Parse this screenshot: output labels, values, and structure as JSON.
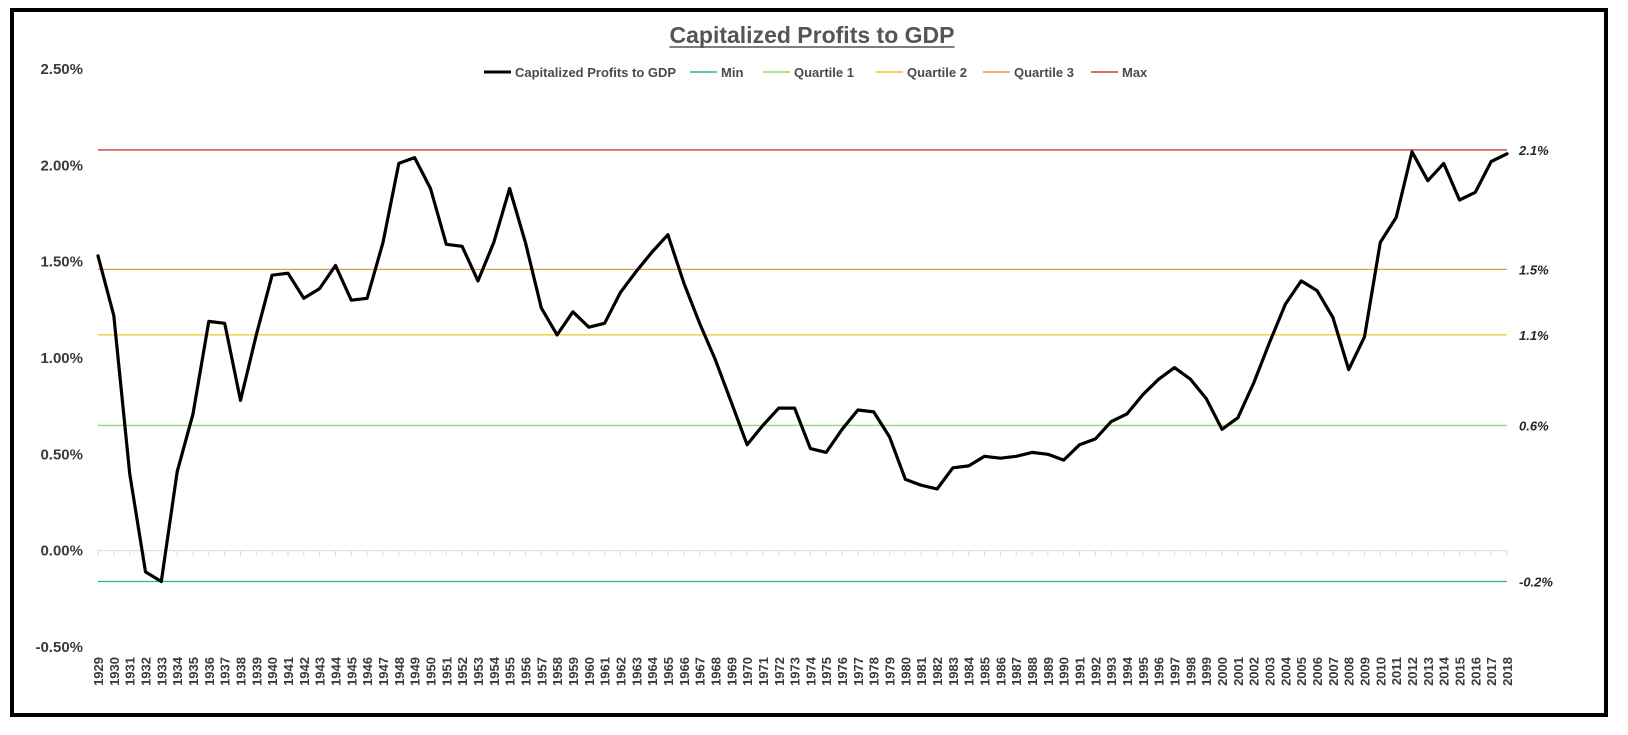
{
  "chart_data": {
    "type": "line",
    "title": "Capitalized Profits to GDP",
    "xlabel": "",
    "ylabel": "",
    "ylim": [
      -0.005,
      0.025
    ],
    "y_ticks": [
      "2.50%",
      "2.00%",
      "1.50%",
      "1.00%",
      "0.50%",
      "0.00%",
      "-0.50%"
    ],
    "y_tick_values": [
      0.025,
      0.02,
      0.015,
      0.01,
      0.005,
      0.0,
      -0.005
    ],
    "x": [
      1929,
      1930,
      1931,
      1932,
      1933,
      1934,
      1935,
      1936,
      1937,
      1938,
      1939,
      1940,
      1941,
      1942,
      1943,
      1944,
      1945,
      1946,
      1947,
      1948,
      1949,
      1950,
      1951,
      1952,
      1953,
      1954,
      1955,
      1956,
      1957,
      1958,
      1959,
      1960,
      1961,
      1962,
      1963,
      1964,
      1965,
      1966,
      1967,
      1968,
      1969,
      1970,
      1971,
      1972,
      1973,
      1974,
      1975,
      1976,
      1977,
      1978,
      1979,
      1980,
      1981,
      1982,
      1983,
      1984,
      1985,
      1986,
      1987,
      1988,
      1989,
      1990,
      1991,
      1992,
      1993,
      1994,
      1995,
      1996,
      1997,
      1998,
      1999,
      2000,
      2001,
      2002,
      2003,
      2004,
      2005,
      2006,
      2007,
      2008,
      2009,
      2010,
      2011,
      2012,
      2013,
      2014,
      2015,
      2016,
      2017,
      2018
    ],
    "x_labels": [
      "1929",
      "1930",
      "1931",
      "1932",
      "1933",
      "1934",
      "1935",
      "1936",
      "1937",
      "1938",
      "1939",
      "1940",
      "1941",
      "1942",
      "1943",
      "1944",
      "1945",
      "1946",
      "1947",
      "1948",
      "1949",
      "1950",
      "1951",
      "1952",
      "1953",
      "1954",
      "1955",
      "1956",
      "1957",
      "1958",
      "1959",
      "1960",
      "1961",
      "1962",
      "1963",
      "1964",
      "1965",
      "1966",
      "1967",
      "1968",
      "1969",
      "1970",
      "1971",
      "1972",
      "1973",
      "1974",
      "1975",
      "1976",
      "1977",
      "1978",
      "1979",
      "1980",
      "1981",
      "1982",
      "1983",
      "1984",
      "1985",
      "1986",
      "1987",
      "1988",
      "1989",
      "1990",
      "1991",
      "1992",
      "1993",
      "1994",
      "1995",
      "1996",
      "1997",
      "1998",
      "1999",
      "2000",
      "2001",
      "2002",
      "2003",
      "2004",
      "2005",
      "2006",
      "2007",
      "2008",
      "2009",
      "2010",
      "2011",
      "2012",
      "2013",
      "2014",
      "2015",
      "2016",
      "2017",
      "2018"
    ],
    "series": [
      {
        "name": "Capitalized Profits to GDP",
        "color": "#000000",
        "values": [
          0.0153,
          0.0122,
          0.004,
          -0.0011,
          -0.0016,
          0.0041,
          0.0071,
          0.0119,
          0.0118,
          0.0078,
          0.0112,
          0.0143,
          0.0144,
          0.0131,
          0.0136,
          0.0148,
          0.013,
          0.0131,
          0.016,
          0.0201,
          0.0204,
          0.0188,
          0.0159,
          0.0158,
          0.014,
          0.016,
          0.0188,
          0.016,
          0.0126,
          0.0112,
          0.0124,
          0.0116,
          0.0118,
          0.0134,
          0.0145,
          0.0155,
          0.0164,
          0.0139,
          0.0118,
          0.0099,
          0.0077,
          0.0055,
          0.0065,
          0.0074,
          0.0074,
          0.0053,
          0.0051,
          0.0063,
          0.0073,
          0.0072,
          0.0059,
          0.0037,
          0.0034,
          0.0032,
          0.0043,
          0.0044,
          0.0049,
          0.0048,
          0.0049,
          0.0051,
          0.005,
          0.0047,
          0.0055,
          0.0058,
          0.0067,
          0.0071,
          0.0081,
          0.0089,
          0.0095,
          0.0089,
          0.0079,
          0.0063,
          0.0069,
          0.0087,
          0.0108,
          0.0128,
          0.014,
          0.0135,
          0.0121,
          0.0094,
          0.0111,
          0.016,
          0.0173,
          0.0207,
          0.0192,
          0.0201,
          0.0182,
          0.0186,
          0.0202,
          0.0206
        ]
      }
    ],
    "reference_lines": [
      {
        "name": "Min",
        "value": -0.0016,
        "label": "-0.2%",
        "color": "#2db87a"
      },
      {
        "name": "Quartile 1",
        "value": 0.0065,
        "label": "0.6%",
        "color": "#9bd86a"
      },
      {
        "name": "Quartile 2",
        "value": 0.0112,
        "label": "1.1%",
        "color": "#f3c623"
      },
      {
        "name": "Quartile 3",
        "value": 0.0146,
        "label": "1.5%",
        "color": "#e89a3c"
      },
      {
        "name": "Max",
        "value": 0.0208,
        "label": "2.1%",
        "color": "#d03b3b"
      }
    ],
    "legend": [
      {
        "name": "Capitalized Profits to GDP",
        "color": "#000000"
      },
      {
        "name": "Min",
        "color": "#2db87a"
      },
      {
        "name": "Quartile 1",
        "color": "#9bd86a"
      },
      {
        "name": "Quartile 2",
        "color": "#f3c623"
      },
      {
        "name": "Quartile 3",
        "color": "#e89a3c"
      },
      {
        "name": "Max",
        "color": "#d03b3b"
      }
    ],
    "legend_position": "top",
    "grid": false
  }
}
